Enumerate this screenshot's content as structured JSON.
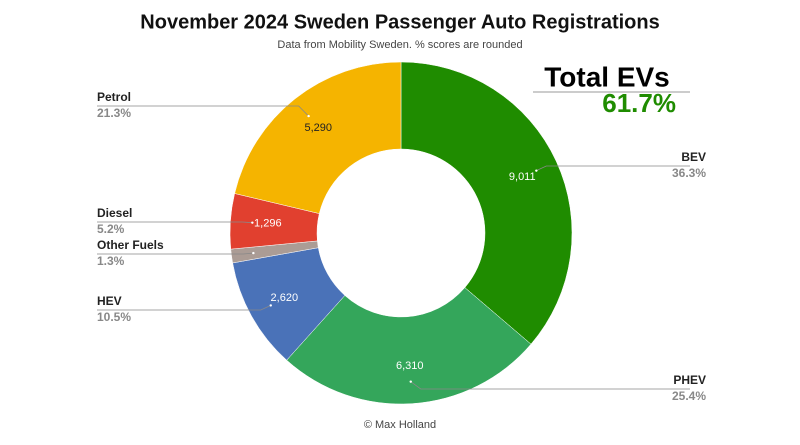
{
  "chart_data": {
    "type": "donut",
    "title": "November 2024 Sweden Passenger Auto Registrations",
    "subtitle": "Data from Mobility Sweden. % scores are rounded",
    "categories": [
      "BEV",
      "PHEV",
      "HEV",
      "Other Fuels",
      "Diesel",
      "Petrol"
    ],
    "values": [
      9011,
      6310,
      2620,
      323,
      1296,
      5290
    ],
    "value_labels": [
      "9,011",
      "6,310",
      "2,620",
      null,
      "1,296",
      "5,290"
    ],
    "percent_labels": [
      "36.3%",
      "25.4%",
      "10.5%",
      "1.3%",
      "5.2%",
      "21.3%"
    ],
    "colors": [
      "#1f8c00",
      "#34a65b",
      "#4a72b8",
      "#ab9c95",
      "#e1402f",
      "#f5b400"
    ],
    "annotation": {
      "title": "Total EVs",
      "value_label": "61.7%"
    },
    "credit": "© Max Holland"
  }
}
